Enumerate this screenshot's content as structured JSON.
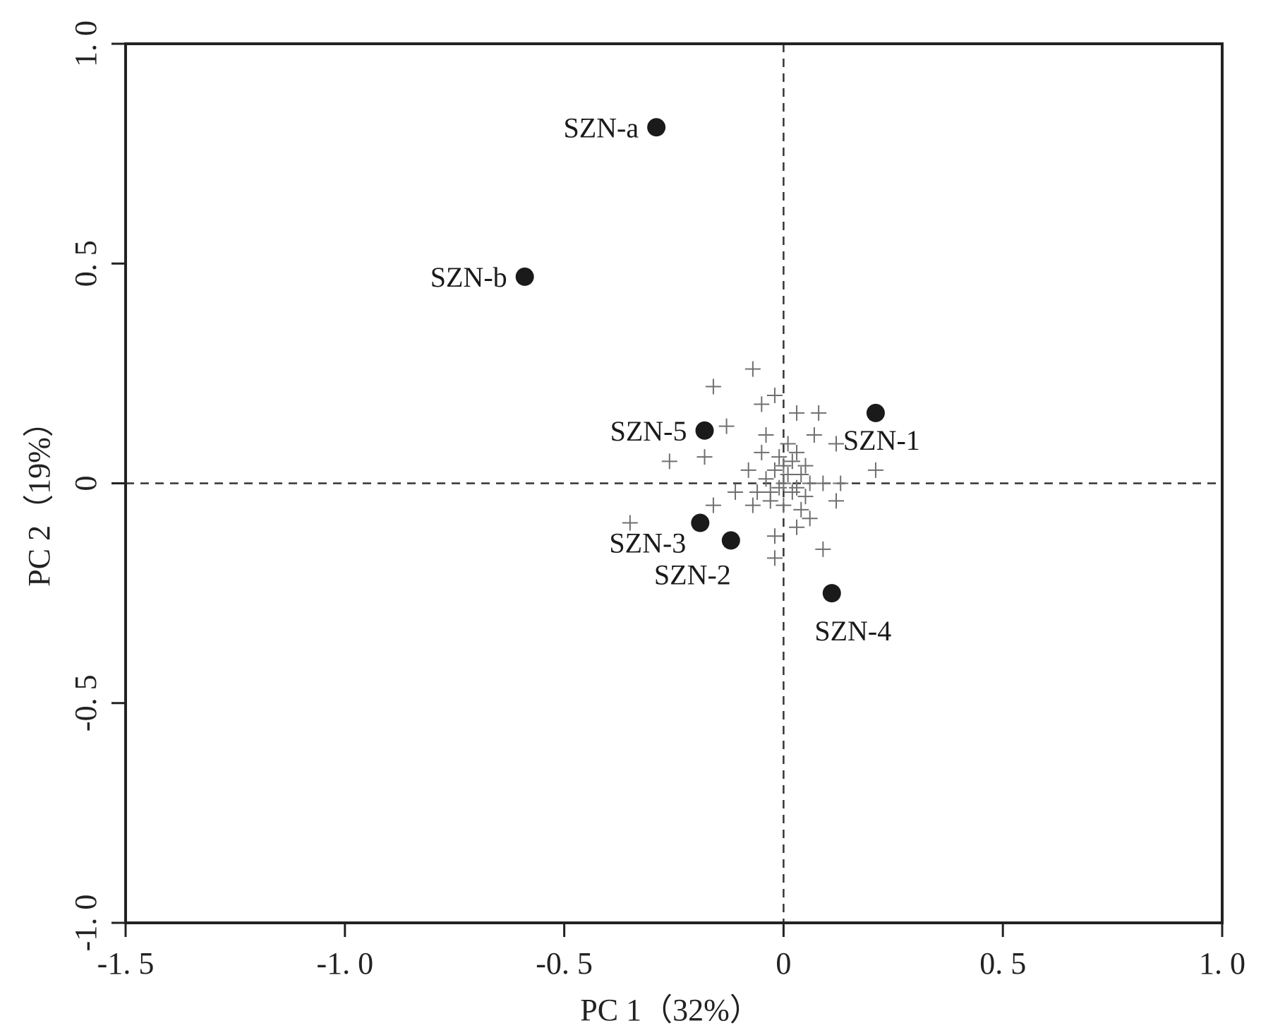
{
  "chart_data": {
    "type": "scatter",
    "title": "",
    "xlabel": "PC 1（32%）",
    "ylabel": "PC 2（19%）",
    "xlim": [
      -1.5,
      1.0
    ],
    "ylim": [
      -1.0,
      1.0
    ],
    "x_ticks": [
      -1.5,
      -1.0,
      -0.5,
      0,
      0.5,
      1.0
    ],
    "x_tick_labels": [
      "-1. 5",
      "-1. 0",
      "-0. 5",
      "0",
      "0. 5",
      "1. 0"
    ],
    "y_ticks": [
      -1.0,
      -0.5,
      0,
      0.5,
      1.0
    ],
    "y_tick_labels": [
      "-1. 0",
      "-0. 5",
      "0",
      "0. 5",
      "1. 0"
    ],
    "grid": false,
    "reference_lines": {
      "x": 0,
      "y": 0,
      "style": "dashed"
    },
    "colors": {
      "axis": "#222222",
      "sample": "#1a1a1a",
      "variable": "#6f6f6f"
    },
    "samples": [
      {
        "label": "SZN-a",
        "x": -0.29,
        "y": 0.81
      },
      {
        "label": "SZN-b",
        "x": -0.59,
        "y": 0.47
      },
      {
        "label": "SZN-5",
        "x": -0.18,
        "y": 0.12
      },
      {
        "label": "SZN-1",
        "x": 0.21,
        "y": 0.16
      },
      {
        "label": "SZN-3",
        "x": -0.19,
        "y": -0.09
      },
      {
        "label": "SZN-2",
        "x": -0.12,
        "y": -0.13
      },
      {
        "label": "SZN-4",
        "x": 0.11,
        "y": -0.25
      }
    ],
    "variables": {
      "marker": "plus",
      "points": [
        [
          -0.07,
          0.26
        ],
        [
          -0.16,
          0.22
        ],
        [
          -0.02,
          0.2
        ],
        [
          -0.05,
          0.18
        ],
        [
          -0.13,
          0.13
        ],
        [
          -0.26,
          0.05
        ],
        [
          -0.18,
          0.06
        ],
        [
          0.03,
          0.16
        ],
        [
          0.08,
          0.16
        ],
        [
          0.07,
          0.11
        ],
        [
          0.12,
          0.09
        ],
        [
          0.21,
          0.03
        ],
        [
          -0.04,
          0.11
        ],
        [
          0.01,
          0.09
        ],
        [
          -0.05,
          0.07
        ],
        [
          0.03,
          0.07
        ],
        [
          -0.08,
          0.03
        ],
        [
          0.0,
          0.04
        ],
        [
          0.02,
          0.05
        ],
        [
          0.05,
          0.04
        ],
        [
          -0.02,
          0.03
        ],
        [
          0.04,
          0.02
        ],
        [
          -0.04,
          0.01
        ],
        [
          0.06,
          0.0
        ],
        [
          0.09,
          0.0
        ],
        [
          0.13,
          0.0
        ],
        [
          -0.01,
          -0.01
        ],
        [
          0.02,
          -0.02
        ],
        [
          -0.06,
          -0.02
        ],
        [
          0.05,
          -0.03
        ],
        [
          -0.11,
          -0.02
        ],
        [
          0.12,
          -0.04
        ],
        [
          0.0,
          -0.05
        ],
        [
          -0.03,
          -0.04
        ],
        [
          0.04,
          -0.06
        ],
        [
          -0.07,
          -0.05
        ],
        [
          -0.16,
          -0.05
        ],
        [
          0.06,
          -0.08
        ],
        [
          0.03,
          -0.1
        ],
        [
          -0.35,
          -0.09
        ],
        [
          -0.02,
          -0.12
        ],
        [
          0.09,
          -0.15
        ],
        [
          -0.02,
          -0.17
        ],
        [
          0.0,
          0.0
        ],
        [
          0.01,
          0.02
        ],
        [
          -0.01,
          0.06
        ],
        [
          0.03,
          -0.01
        ],
        [
          -0.03,
          -0.02
        ]
      ]
    }
  }
}
